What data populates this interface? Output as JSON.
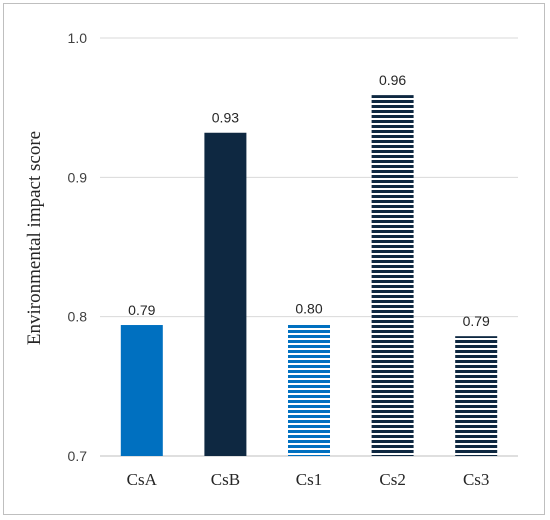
{
  "chart_data": {
    "type": "bar",
    "title": "",
    "xlabel": "",
    "ylabel": "Environmental  impact score",
    "ylim": [
      0.7,
      1.0
    ],
    "yticks": [
      "0.7",
      "0.8",
      "0.9",
      "1.0"
    ],
    "grid": true,
    "legend": "none",
    "categories": [
      "CsA",
      "CsB",
      "Cs1",
      "Cs2",
      "Cs3"
    ],
    "values": [
      0.794,
      0.932,
      0.795,
      0.959,
      0.786
    ],
    "data_labels": [
      "0.79",
      "0.93",
      "0.80",
      "0.96",
      "0.79"
    ],
    "fills": [
      {
        "pattern": "solid",
        "color": "#0070C0"
      },
      {
        "pattern": "solid",
        "color": "#0E2841"
      },
      {
        "pattern": "horizontal-stripes",
        "color": "#0070C0"
      },
      {
        "pattern": "horizontal-stripes",
        "color": "#0E2841"
      },
      {
        "pattern": "horizontal-stripes",
        "color": "#0E2841"
      }
    ]
  }
}
